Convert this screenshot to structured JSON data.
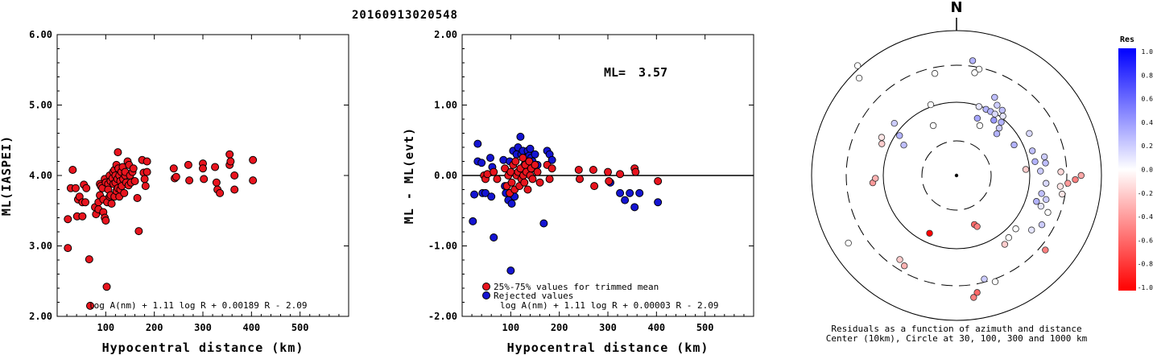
{
  "event_id": "20160913020548",
  "north_label": "N",
  "chart_data": [
    {
      "type": "scatter",
      "ylabel": "ML(IASPEI)",
      "xlabel": "Hypocentral distance (km)",
      "xticks": [
        "100",
        "200",
        "300",
        "400",
        "500"
      ],
      "yticks": [
        "2.00",
        "3.00",
        "4.00",
        "5.00",
        "6.00"
      ],
      "xlim": [
        0,
        600
      ],
      "ylim": [
        2.0,
        6.0
      ],
      "formula": "log A(nm) + 1.11 log R + 0.00189 R - 2.09",
      "points": [
        [
          22,
          3.38
        ],
        [
          22,
          2.97
        ],
        [
          32,
          4.08
        ],
        [
          28,
          3.82
        ],
        [
          38,
          3.82
        ],
        [
          41,
          3.42
        ],
        [
          43,
          3.66
        ],
        [
          46,
          3.7
        ],
        [
          52,
          3.62
        ],
        [
          55,
          3.87
        ],
        [
          58,
          3.62
        ],
        [
          52,
          3.42
        ],
        [
          60,
          3.82
        ],
        [
          66,
          2.81
        ],
        [
          68,
          2.15
        ],
        [
          78,
          3.55
        ],
        [
          80,
          3.45
        ],
        [
          85,
          3.62
        ],
        [
          85,
          3.52
        ],
        [
          88,
          3.72
        ],
        [
          88,
          3.88
        ],
        [
          90,
          3.85
        ],
        [
          93,
          3.82
        ],
        [
          95,
          3.48
        ],
        [
          95,
          3.66
        ],
        [
          98,
          3.4
        ],
        [
          100,
          3.36
        ],
        [
          98,
          3.95
        ],
        [
          100,
          3.9
        ],
        [
          102,
          2.42
        ],
        [
          103,
          3.62
        ],
        [
          105,
          3.88
        ],
        [
          105,
          3.8
        ],
        [
          108,
          4.0
        ],
        [
          108,
          3.7
        ],
        [
          110,
          3.72
        ],
        [
          110,
          3.92
        ],
        [
          112,
          3.6
        ],
        [
          114,
          3.96
        ],
        [
          115,
          4.05
        ],
        [
          116,
          3.88
        ],
        [
          118,
          4.08
        ],
        [
          118,
          3.7
        ],
        [
          120,
          4.0
        ],
        [
          120,
          3.9
        ],
        [
          122,
          3.78
        ],
        [
          122,
          4.15
        ],
        [
          124,
          3.95
        ],
        [
          125,
          4.33
        ],
        [
          125,
          3.82
        ],
        [
          126,
          4.1
        ],
        [
          128,
          4.0
        ],
        [
          128,
          3.7
        ],
        [
          130,
          3.92
        ],
        [
          130,
          3.8
        ],
        [
          132,
          4.05
        ],
        [
          133,
          3.85
        ],
        [
          135,
          4.12
        ],
        [
          136,
          3.95
        ],
        [
          138,
          3.75
        ],
        [
          140,
          4.0
        ],
        [
          140,
          4.05
        ],
        [
          142,
          3.9
        ],
        [
          145,
          4.2
        ],
        [
          147,
          3.86
        ],
        [
          148,
          4.15
        ],
        [
          150,
          4.0
        ],
        [
          152,
          3.9
        ],
        [
          155,
          4.05
        ],
        [
          157,
          4.1
        ],
        [
          160,
          3.92
        ],
        [
          165,
          3.68
        ],
        [
          168,
          3.21
        ],
        [
          175,
          4.22
        ],
        [
          178,
          4.04
        ],
        [
          180,
          3.95
        ],
        [
          182,
          3.85
        ],
        [
          185,
          4.2
        ],
        [
          185,
          4.05
        ],
        [
          240,
          4.1
        ],
        [
          242,
          3.96
        ],
        [
          245,
          3.98
        ],
        [
          270,
          4.15
        ],
        [
          272,
          3.93
        ],
        [
          300,
          4.17
        ],
        [
          300,
          4.1
        ],
        [
          302,
          3.95
        ],
        [
          325,
          4.12
        ],
        [
          328,
          3.9
        ],
        [
          330,
          3.8
        ],
        [
          335,
          3.75
        ],
        [
          355,
          4.3
        ],
        [
          355,
          4.15
        ],
        [
          357,
          4.2
        ],
        [
          365,
          4.0
        ],
        [
          365,
          3.8
        ],
        [
          403,
          4.22
        ],
        [
          403,
          3.93
        ]
      ]
    },
    {
      "type": "scatter",
      "ylabel": "ML - ML(evt)",
      "xlabel": "Hypocentral distance (km)",
      "xticks": [
        "100",
        "200",
        "300",
        "400",
        "500"
      ],
      "yticks": [
        "-2.00",
        "-1.00",
        "0.00",
        "1.00",
        "2.00"
      ],
      "xlim": [
        0,
        600
      ],
      "ylim": [
        -2.0,
        2.0
      ],
      "ml_label": "ML=",
      "ml_value": "3.57",
      "formula": "log A(nm) + 1.11 log R + 0.00003 R - 2.09",
      "legend": [
        {
          "label": "25%-75% values for trimmed mean",
          "color": "#e8141e"
        },
        {
          "label": "Rejected values",
          "color": "#1414d2"
        }
      ],
      "series": [
        {
          "name": "25%-75% values for trimmed mean",
          "color": "#e8141e",
          "points": [
            [
              45,
              0.0
            ],
            [
              48,
              -0.05
            ],
            [
              52,
              0.02
            ],
            [
              65,
              0.05
            ],
            [
              72,
              -0.05
            ],
            [
              88,
              0.1
            ],
            [
              92,
              -0.15
            ],
            [
              95,
              0.0
            ],
            [
              98,
              -0.25
            ],
            [
              100,
              0.05
            ],
            [
              102,
              -0.1
            ],
            [
              105,
              0.15
            ],
            [
              108,
              -0.2
            ],
            [
              110,
              0.2
            ],
            [
              112,
              0.0
            ],
            [
              115,
              0.05
            ],
            [
              118,
              -0.15
            ],
            [
              120,
              0.1
            ],
            [
              122,
              -0.05
            ],
            [
              125,
              0.25
            ],
            [
              126,
              0.0
            ],
            [
              128,
              -0.1
            ],
            [
              130,
              0.15
            ],
            [
              132,
              0.05
            ],
            [
              135,
              -0.2
            ],
            [
              138,
              0.2
            ],
            [
              140,
              0.0
            ],
            [
              142,
              0.1
            ],
            [
              145,
              -0.05
            ],
            [
              150,
              0.15
            ],
            [
              155,
              0.05
            ],
            [
              160,
              -0.1
            ],
            [
              175,
              0.15
            ],
            [
              180,
              -0.05
            ],
            [
              185,
              0.1
            ],
            [
              240,
              0.08
            ],
            [
              242,
              -0.05
            ],
            [
              270,
              0.08
            ],
            [
              272,
              -0.15
            ],
            [
              300,
              0.05
            ],
            [
              302,
              -0.08
            ],
            [
              325,
              0.02
            ],
            [
              355,
              0.1
            ],
            [
              357,
              0.05
            ],
            [
              403,
              -0.08
            ]
          ]
        },
        {
          "name": "Rejected values",
          "color": "#1414d2",
          "points": [
            [
              22,
              -0.65
            ],
            [
              25,
              -0.27
            ],
            [
              32,
              0.45
            ],
            [
              32,
              0.2
            ],
            [
              40,
              0.18
            ],
            [
              42,
              -0.25
            ],
            [
              48,
              -0.25
            ],
            [
              58,
              0.25
            ],
            [
              60,
              -0.3
            ],
            [
              62,
              0.12
            ],
            [
              65,
              -0.88
            ],
            [
              85,
              0.22
            ],
            [
              88,
              -0.15
            ],
            [
              90,
              -0.25
            ],
            [
              95,
              -0.35
            ],
            [
              98,
              0.2
            ],
            [
              100,
              -1.35
            ],
            [
              102,
              -0.4
            ],
            [
              105,
              0.35
            ],
            [
              108,
              -0.3
            ],
            [
              112,
              0.3
            ],
            [
              115,
              0.4
            ],
            [
              120,
              0.55
            ],
            [
              122,
              0.3
            ],
            [
              125,
              0.35
            ],
            [
              128,
              0.15
            ],
            [
              130,
              0.25
            ],
            [
              135,
              0.35
            ],
            [
              138,
              0.28
            ],
            [
              140,
              0.38
            ],
            [
              142,
              0.25
            ],
            [
              145,
              0.2
            ],
            [
              148,
              0.1
            ],
            [
              150,
              0.3
            ],
            [
              155,
              0.15
            ],
            [
              168,
              -0.68
            ],
            [
              175,
              0.35
            ],
            [
              180,
              0.3
            ],
            [
              185,
              0.22
            ],
            [
              305,
              -0.1
            ],
            [
              325,
              -0.25
            ],
            [
              335,
              -0.35
            ],
            [
              345,
              -0.25
            ],
            [
              355,
              -0.45
            ],
            [
              365,
              -0.25
            ],
            [
              403,
              -0.38
            ]
          ]
        }
      ]
    },
    {
      "type": "scatter",
      "subtype": "polar-residuals",
      "caption_lines": [
        "Residuals as a function of azimuth and distance",
        "Center (10km), Circle at 30, 100, 300 and 1000 km"
      ],
      "colorbar_title": "Res",
      "colorbar_ticks": [
        "1.0",
        "0.8",
        "0.6",
        "0.4",
        "0.2",
        "0.0",
        "-0.2",
        "-0.4",
        "-0.6",
        "-0.8",
        "-1.0"
      ],
      "points": [
        {
          "az": 315,
          "dist": 95,
          "res": 0.0
        },
        {
          "az": 318,
          "dist": 102,
          "res": 0.0
        },
        {
          "az": 340,
          "dist": 52,
          "res": 0.0
        },
        {
          "az": 12,
          "dist": 75,
          "res": 0.0
        },
        {
          "az": 20,
          "dist": 42,
          "res": 0.35
        },
        {
          "az": 24,
          "dist": 50,
          "res": 0.3
        },
        {
          "az": 26,
          "dist": 60,
          "res": 0.25
        },
        {
          "az": 28,
          "dist": 50,
          "res": 0.3
        },
        {
          "az": 30,
          "dist": 56,
          "res": 0.2
        },
        {
          "az": 32,
          "dist": 50,
          "res": 0.15
        },
        {
          "az": 35,
          "dist": 55,
          "res": 0.25
        },
        {
          "az": 34,
          "dist": 46,
          "res": 0.4
        },
        {
          "az": 38,
          "dist": 52,
          "res": 0.1
        },
        {
          "az": 40,
          "dist": 48,
          "res": 0.3
        },
        {
          "az": 42,
          "dist": 44,
          "res": 0.2
        },
        {
          "az": 25,
          "dist": 38,
          "res": 0.0
        },
        {
          "az": 18,
          "dist": 50,
          "res": 0.1
        },
        {
          "az": 44,
          "dist": 40,
          "res": 0.3
        },
        {
          "az": 62,
          "dist": 45,
          "res": 0.3
        },
        {
          "az": 60,
          "dist": 58,
          "res": 0.15
        },
        {
          "az": 72,
          "dist": 55,
          "res": 0.25
        },
        {
          "az": 78,
          "dist": 62,
          "res": 0.2
        },
        {
          "az": 80,
          "dist": 55,
          "res": 0.3
        },
        {
          "az": 82,
          "dist": 62,
          "res": 0.25
        },
        {
          "az": 85,
          "dist": 48,
          "res": -0.2
        },
        {
          "az": 87,
          "dist": 58,
          "res": 0.2
        },
        {
          "az": 88,
          "dist": 72,
          "res": -0.15
        },
        {
          "az": 95,
          "dist": 62,
          "res": 0.15
        },
        {
          "az": 96,
          "dist": 72,
          "res": -0.1
        },
        {
          "az": 102,
          "dist": 60,
          "res": 0.25
        },
        {
          "az": 105,
          "dist": 64,
          "res": 0.2
        },
        {
          "az": 108,
          "dist": 58,
          "res": 0.3
        },
        {
          "az": 110,
          "dist": 62,
          "res": 0.1
        },
        {
          "az": 112,
          "dist": 68,
          "res": 0.0
        },
        {
          "az": 100,
          "dist": 74,
          "res": -0.1
        },
        {
          "az": 94,
          "dist": 77,
          "res": -0.4
        },
        {
          "az": 92,
          "dist": 82,
          "res": -0.5
        },
        {
          "az": 90,
          "dist": 86,
          "res": -0.35
        },
        {
          "az": 126,
          "dist": 64,
          "res": 0.1
        },
        {
          "az": 132,
          "dist": 55,
          "res": 0.0
        },
        {
          "az": 120,
          "dist": 68,
          "res": 0.2
        },
        {
          "az": 130,
          "dist": 80,
          "res": -0.5
        },
        {
          "az": 140,
          "dist": 56,
          "res": 0.0
        },
        {
          "az": 145,
          "dist": 58,
          "res": -0.2
        },
        {
          "az": 160,
          "dist": 36,
          "res": -0.6
        },
        {
          "az": 158,
          "dist": 38,
          "res": -0.5
        },
        {
          "az": 170,
          "dist": 82,
          "res": -0.6
        },
        {
          "az": 172,
          "dist": 85,
          "res": -0.5
        },
        {
          "az": 160,
          "dist": 78,
          "res": 0.0
        },
        {
          "az": 165,
          "dist": 74,
          "res": 0.2
        },
        {
          "az": 205,
          "dist": 44,
          "res": -1.0
        },
        {
          "az": 210,
          "dist": 72,
          "res": -0.3
        },
        {
          "az": 214,
          "dist": 70,
          "res": -0.2
        },
        {
          "az": 238,
          "dist": 88,
          "res": 0.0
        },
        {
          "az": 265,
          "dist": 58,
          "res": -0.4
        },
        {
          "az": 268,
          "dist": 56,
          "res": -0.3
        },
        {
          "az": 293,
          "dist": 56,
          "res": -0.2
        },
        {
          "az": 297,
          "dist": 58,
          "res": -0.1
        },
        {
          "az": 300,
          "dist": 42,
          "res": 0.25
        },
        {
          "az": 305,
          "dist": 48,
          "res": 0.3
        },
        {
          "az": 310,
          "dist": 56,
          "res": 0.2
        },
        {
          "az": 335,
          "dist": 38,
          "res": 0.0
        },
        {
          "az": 348,
          "dist": 72,
          "res": 0.0
        },
        {
          "az": 10,
          "dist": 72,
          "res": 0.0
        },
        {
          "az": 8,
          "dist": 80,
          "res": 0.3
        }
      ]
    }
  ]
}
